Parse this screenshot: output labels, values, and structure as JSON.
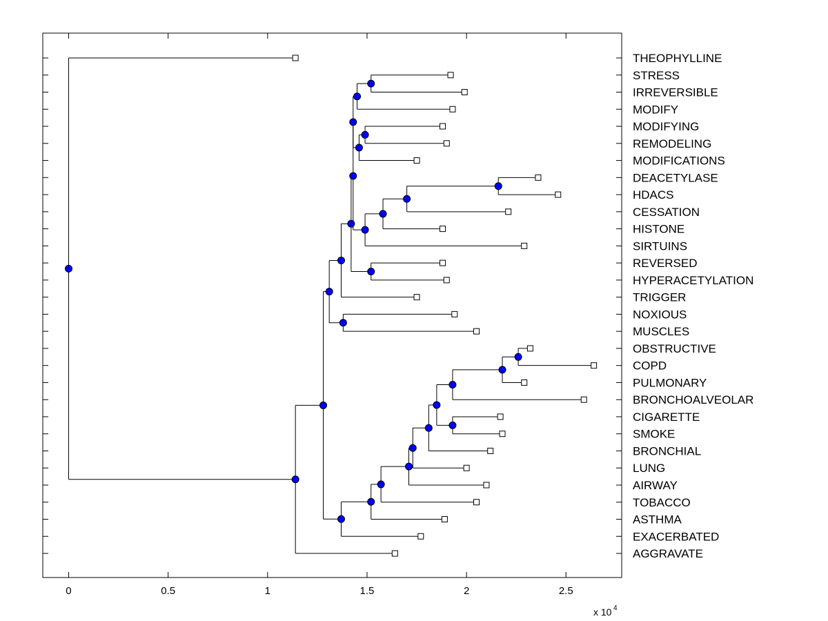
{
  "chart_data": {
    "type": "dendrogram",
    "title": "",
    "xlabel": "",
    "ylabel": "",
    "x_multiplier_label": "x 10",
    "x_multiplier_exponent": "4",
    "xlim": [
      -0.13,
      2.78
    ],
    "x_ticks": [
      0,
      0.5,
      1,
      1.5,
      2,
      2.5
    ],
    "x_tick_labels": [
      "0",
      "0.5",
      "1",
      "1.5",
      "2",
      "2.5"
    ],
    "colors": {
      "node": "#0000ff",
      "line": "#000000",
      "leaf_marker": "#ffffff"
    },
    "leaves": [
      {
        "label": "THEOPHYLLINE",
        "x": 1.14
      },
      {
        "label": "STRESS",
        "x": 1.92
      },
      {
        "label": "IRREVERSIBLE",
        "x": 1.99
      },
      {
        "label": "MODIFY",
        "x": 1.93
      },
      {
        "label": "MODIFYING",
        "x": 1.88
      },
      {
        "label": "REMODELING",
        "x": 1.9
      },
      {
        "label": "MODIFICATIONS",
        "x": 1.75
      },
      {
        "label": "DEACETYLASE",
        "x": 2.36
      },
      {
        "label": "HDACS",
        "x": 2.46
      },
      {
        "label": "CESSATION",
        "x": 2.21
      },
      {
        "label": "HISTONE",
        "x": 1.88
      },
      {
        "label": "SIRTUINS",
        "x": 2.29
      },
      {
        "label": "REVERSED",
        "x": 1.88
      },
      {
        "label": "HYPERACETYLATION",
        "x": 1.9
      },
      {
        "label": "TRIGGER",
        "x": 1.75
      },
      {
        "label": "NOXIOUS",
        "x": 1.94
      },
      {
        "label": "MUSCLES",
        "x": 2.05
      },
      {
        "label": "OBSTRUCTIVE",
        "x": 2.32
      },
      {
        "label": "COPD",
        "x": 2.64
      },
      {
        "label": "PULMONARY",
        "x": 2.29
      },
      {
        "label": "BRONCHOALVEOLAR",
        "x": 2.59
      },
      {
        "label": "CIGARETTE",
        "x": 2.17
      },
      {
        "label": "SMOKE",
        "x": 2.18
      },
      {
        "label": "BRONCHIAL",
        "x": 2.12
      },
      {
        "label": "LUNG",
        "x": 2.0
      },
      {
        "label": "AIRWAY",
        "x": 2.1
      },
      {
        "label": "TOBACCO",
        "x": 2.05
      },
      {
        "label": "ASTHMA",
        "x": 1.89
      },
      {
        "label": "EXACERBATED",
        "x": 1.77
      },
      {
        "label": "AGGRAVATE",
        "x": 1.64
      }
    ],
    "nodes": [
      {
        "id": "n1",
        "x": 1.52,
        "children": [
          "L1",
          "L2"
        ]
      },
      {
        "id": "n2",
        "x": 1.45,
        "children": [
          "n1",
          "L3"
        ]
      },
      {
        "id": "n3",
        "x": 1.49,
        "children": [
          "L4",
          "L5"
        ]
      },
      {
        "id": "n4",
        "x": 1.46,
        "children": [
          "n3",
          "L6"
        ]
      },
      {
        "id": "n5",
        "x": 1.43,
        "children": [
          "n2",
          "n4"
        ]
      },
      {
        "id": "n6",
        "x": 2.16,
        "children": [
          "L7",
          "L8"
        ]
      },
      {
        "id": "n7",
        "x": 1.7,
        "children": [
          "n6",
          "L9"
        ]
      },
      {
        "id": "n8",
        "x": 1.58,
        "children": [
          "n7",
          "L10"
        ]
      },
      {
        "id": "n9",
        "x": 1.49,
        "children": [
          "n8",
          "L11"
        ]
      },
      {
        "id": "n10",
        "x": 1.43,
        "children": [
          "n5",
          "n9"
        ]
      },
      {
        "id": "n11",
        "x": 1.52,
        "children": [
          "L12",
          "L13"
        ]
      },
      {
        "id": "n12",
        "x": 1.42,
        "children": [
          "n10",
          "n11"
        ]
      },
      {
        "id": "n13",
        "x": 1.37,
        "children": [
          "n12",
          "L14"
        ]
      },
      {
        "id": "n14",
        "x": 1.38,
        "children": [
          "L15",
          "L16"
        ]
      },
      {
        "id": "n15",
        "x": 1.31,
        "children": [
          "n13",
          "n14"
        ]
      },
      {
        "id": "n16",
        "x": 2.26,
        "children": [
          "L17",
          "L18"
        ]
      },
      {
        "id": "n17",
        "x": 2.18,
        "children": [
          "n16",
          "L19"
        ]
      },
      {
        "id": "n18",
        "x": 1.93,
        "children": [
          "n17",
          "L20"
        ]
      },
      {
        "id": "n19",
        "x": 1.93,
        "children": [
          "L21",
          "L22"
        ]
      },
      {
        "id": "n20",
        "x": 1.85,
        "children": [
          "n18",
          "n19"
        ]
      },
      {
        "id": "n21",
        "x": 1.81,
        "children": [
          "n20",
          "L23"
        ]
      },
      {
        "id": "n22",
        "x": 1.73,
        "children": [
          "n21",
          "L24"
        ]
      },
      {
        "id": "n23",
        "x": 1.71,
        "children": [
          "n22",
          "L25"
        ]
      },
      {
        "id": "n24",
        "x": 1.57,
        "children": [
          "n23",
          "L26"
        ]
      },
      {
        "id": "n25",
        "x": 1.52,
        "children": [
          "n24",
          "L27"
        ]
      },
      {
        "id": "n26",
        "x": 1.37,
        "children": [
          "n25",
          "L28"
        ]
      },
      {
        "id": "n27",
        "x": 1.28,
        "children": [
          "n15",
          "n26"
        ]
      },
      {
        "id": "n28",
        "x": 1.14,
        "children": [
          "n27",
          "L29"
        ]
      },
      {
        "id": "n29",
        "x": 0.0,
        "children": [
          "L0",
          "n28"
        ]
      }
    ]
  }
}
